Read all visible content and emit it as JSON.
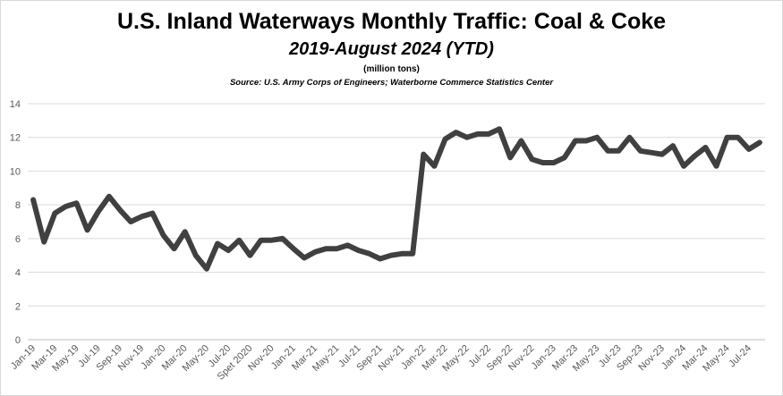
{
  "chart_data": {
    "type": "line",
    "title": "U.S. Inland Waterways Monthly Traffic:  Coal & Coke",
    "subtitle": "2019-August 2024 (YTD)",
    "ylabel": "(million tons)",
    "source": "Source:  U.S. Army Corps of Engineers; Waterborne Commerce Statistics Center",
    "ylim": [
      0,
      14
    ],
    "yticks": [
      0,
      2,
      4,
      6,
      8,
      10,
      12,
      14
    ],
    "grid": true,
    "legend": "none",
    "line_color": "#404040",
    "categories": [
      "Jan-19",
      "Feb-19",
      "Mar-19",
      "Apr-19",
      "May-19",
      "Jun-19",
      "Jul-19",
      "Aug-19",
      "Sep-19",
      "Oct-19",
      "Nov-19",
      "Dec-19",
      "Jan-20",
      "Feb-20",
      "Mar-20",
      "Apr-20",
      "May-20",
      "Jun-20",
      "Jul-20",
      "Aug-20",
      "Spet 2020",
      "Oct-20",
      "Nov-20",
      "Dec-20",
      "Jan-21",
      "Feb-21",
      "Mar-21",
      "Apr-21",
      "May-21",
      "Jun-21",
      "Jul-21",
      "Aug-21",
      "Sep-21",
      "Oct-21",
      "Nov-21",
      "Dec-21",
      "Jan-22",
      "Feb-22",
      "Mar-22",
      "Apr-22",
      "May-22",
      "Jun-22",
      "Jul-22",
      "Aug-22",
      "Sep-22",
      "Oct-22",
      "Nov-22",
      "Dec-22",
      "Jan-23",
      "Feb-23",
      "Mar-23",
      "Apr-23",
      "May-23",
      "Jun-23",
      "Jul-23",
      "Aug-23",
      "Sep-23",
      "Oct-23",
      "Nov-23",
      "Dec-23",
      "Jan-24",
      "Feb-24",
      "Mar-24",
      "Apr-24",
      "May-24",
      "Jun-24",
      "Jul-24",
      "Aug-24"
    ],
    "tick_labels": [
      "Jan-19",
      "Mar-19",
      "May-19",
      "Jul-19",
      "Sep-19",
      "Nov-19",
      "Jan-20",
      "Mar-20",
      "May-20",
      "Jul-20",
      "Spet 2020",
      "Nov-20",
      "Jan-21",
      "Mar-21",
      "May-21",
      "Jul-21",
      "Sep-21",
      "Nov-21",
      "Jan-22",
      "Mar-22",
      "May-22",
      "Jul-22",
      "Sep-22",
      "Nov-22",
      "Jan-23",
      "Mar-23",
      "May-23",
      "Jul-23",
      "Sep-23",
      "Nov-23",
      "Jan-24",
      "Mar-24",
      "May-24",
      "Jul-24"
    ],
    "values": [
      8.3,
      5.8,
      7.5,
      7.9,
      8.1,
      6.5,
      7.6,
      8.5,
      7.7,
      7.0,
      7.3,
      7.5,
      6.2,
      5.4,
      6.4,
      5.0,
      4.2,
      5.7,
      5.3,
      5.9,
      5.0,
      5.9,
      5.9,
      6.0,
      5.4,
      4.85,
      5.2,
      5.4,
      5.4,
      5.6,
      5.3,
      5.1,
      4.8,
      5.0,
      5.1,
      5.1,
      11.0,
      10.3,
      11.9,
      12.3,
      12.0,
      12.2,
      12.2,
      12.5,
      10.8,
      11.8,
      10.7,
      10.5,
      10.5,
      10.8,
      11.8,
      11.8,
      12.0,
      11.2,
      11.2,
      12.0,
      11.2,
      11.1,
      11.0,
      11.5,
      10.3,
      10.9,
      11.4,
      10.3,
      12.0,
      12.0,
      11.3,
      11.7
    ]
  }
}
